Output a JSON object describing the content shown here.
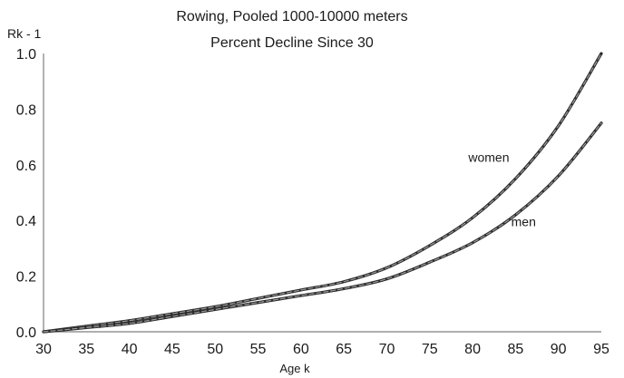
{
  "chart_data": {
    "type": "line",
    "title": "Rowing, Pooled 1000-10000 meters",
    "subtitle": "Percent Decline Since 30",
    "ylabel": "Rk - 1",
    "xlabel": "Age k",
    "xlim": [
      30,
      95
    ],
    "ylim": [
      0.0,
      1.0
    ],
    "x_ticks": [
      "30",
      "35",
      "40",
      "45",
      "50",
      "55",
      "60",
      "65",
      "70",
      "75",
      "80",
      "85",
      "90",
      "95"
    ],
    "y_ticks": [
      "0.0",
      "0.2",
      "0.4",
      "0.6",
      "0.8",
      "1.0"
    ],
    "grid": false,
    "x": [
      30,
      35,
      40,
      45,
      50,
      55,
      60,
      65,
      70,
      75,
      80,
      85,
      90,
      95
    ],
    "series": [
      {
        "name": "women",
        "values": [
          0.0,
          0.02,
          0.04,
          0.065,
          0.09,
          0.12,
          0.15,
          0.18,
          0.23,
          0.31,
          0.41,
          0.55,
          0.74,
          1.0
        ]
      },
      {
        "name": "men",
        "values": [
          0.0,
          0.015,
          0.03,
          0.055,
          0.08,
          0.105,
          0.13,
          0.155,
          0.19,
          0.25,
          0.32,
          0.42,
          0.56,
          0.75
        ]
      }
    ]
  }
}
